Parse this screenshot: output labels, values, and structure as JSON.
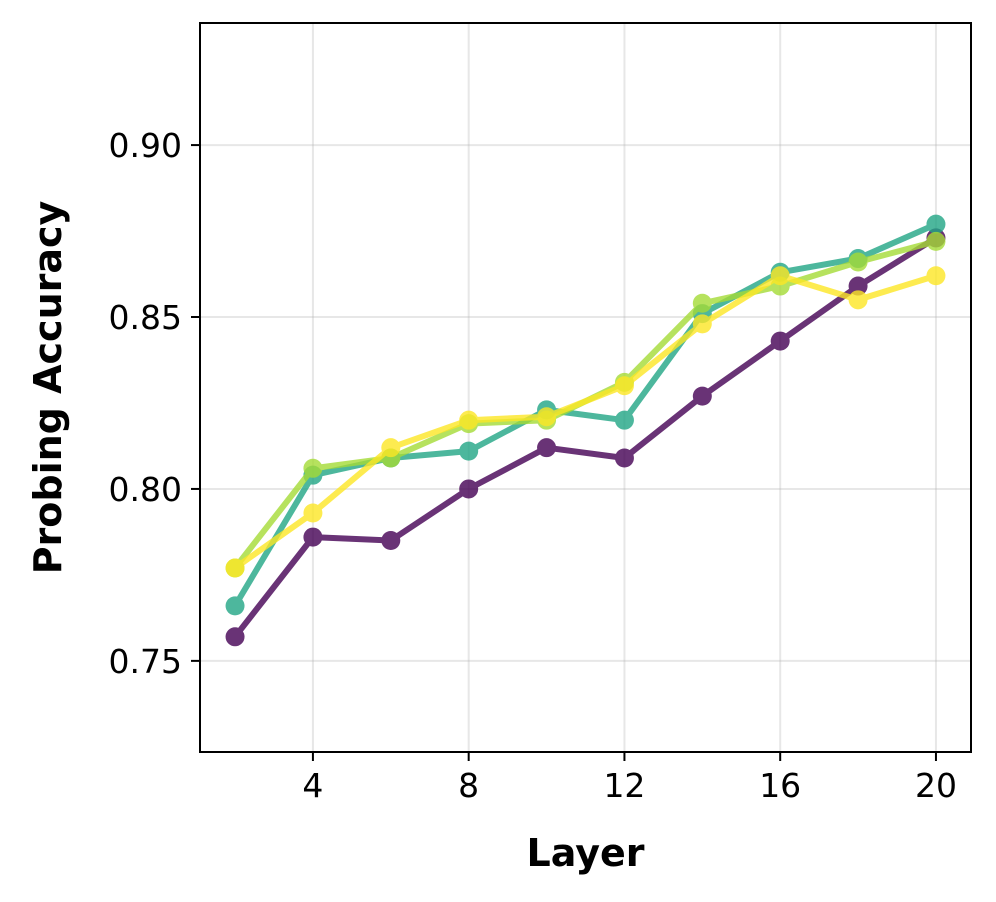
{
  "chart_data": {
    "type": "line",
    "title": "",
    "xlabel": "Layer",
    "ylabel": "Probing Accuracy",
    "xlim": [
      1.1,
      20.9
    ],
    "ylim": [
      0.7235,
      0.9355
    ],
    "xticks": [
      4,
      8,
      12,
      16,
      20
    ],
    "yticks": [
      0.75,
      0.8,
      0.85,
      0.9
    ],
    "xtick_labels": [
      "4",
      "8",
      "12",
      "16",
      "20"
    ],
    "ytick_labels": [
      "0.75",
      "0.80",
      "0.85",
      "0.90"
    ],
    "grid": true,
    "x": [
      2,
      4,
      6,
      8,
      10,
      12,
      14,
      16,
      18,
      20
    ],
    "series": [
      {
        "color": "#440154",
        "values": [
          0.757,
          0.786,
          0.785,
          0.8,
          0.812,
          0.809,
          0.827,
          0.843,
          0.859,
          0.873
        ]
      },
      {
        "color": "#21a685",
        "values": [
          0.766,
          0.804,
          0.809,
          0.811,
          0.823,
          0.82,
          0.851,
          0.863,
          0.867,
          0.877
        ]
      },
      {
        "color": "#a5db36",
        "values": [
          0.777,
          0.806,
          0.809,
          0.819,
          0.82,
          0.831,
          0.854,
          0.859,
          0.866,
          0.872
        ]
      },
      {
        "color": "#fde725",
        "values": [
          0.777,
          0.793,
          0.812,
          0.82,
          0.821,
          0.83,
          0.848,
          0.862,
          0.855,
          0.862
        ]
      }
    ]
  }
}
